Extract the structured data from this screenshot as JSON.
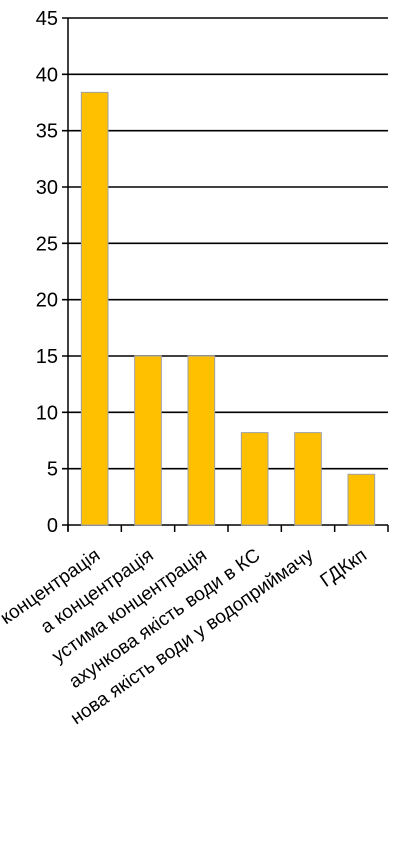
{
  "chart_data": {
    "type": "bar",
    "categories": [
      "концентрація",
      "а концентрація",
      "устима концентрація",
      "ахункова якість води в КС",
      "нова якість води у водоприймачу",
      "ГДКкп"
    ],
    "values": [
      38.4,
      15.0,
      15.0,
      8.2,
      8.2,
      4.5
    ],
    "yticks": [
      "0",
      "5",
      "10",
      "15",
      "20",
      "25",
      "30",
      "35",
      "40",
      "45"
    ],
    "ylim": [
      0,
      45
    ],
    "grid": true,
    "legend": "none",
    "colors": {
      "bar": "#ffc000",
      "bar_stroke": "#a0a0a0",
      "grid": "#000000"
    }
  }
}
